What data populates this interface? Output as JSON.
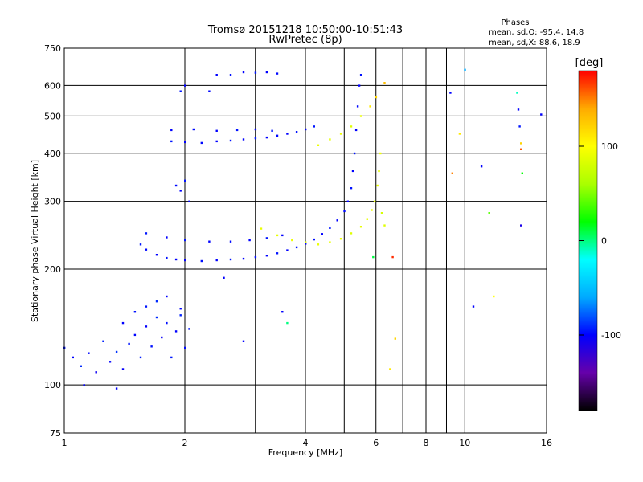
{
  "chart_data": {
    "type": "scatter",
    "title": "Tromsø 20151218 10:50:00-10:51:43",
    "subtitle": "RwPretec (8p)",
    "xlabel": "Frequency [MHz]",
    "ylabel": "Stationary phase Virtual Height [km]",
    "x_scale": "log",
    "y_scale": "log",
    "xlim": [
      1,
      16
    ],
    "ylim": [
      75,
      750
    ],
    "grid": true,
    "x_ticks": [
      1,
      2,
      4,
      6,
      8,
      10,
      16
    ],
    "x_tick_labels": [
      "1",
      "2",
      "4",
      "6",
      "8",
      "10",
      "16"
    ],
    "x_minor_ticks": [
      3,
      5,
      7,
      9
    ],
    "y_ticks": [
      75,
      100,
      200,
      300,
      400,
      500,
      600,
      750
    ],
    "y_tick_labels": [
      "75",
      "100",
      "200",
      "300",
      "400",
      "500",
      "600",
      "750"
    ],
    "stats": {
      "heading": "Phases",
      "line_o": "mean, sd,O: -95.4, 14.8",
      "line_x": "mean, sd,X:  88.6, 18.9"
    },
    "colorbar": {
      "label": "[deg]",
      "range": [
        -180,
        180
      ],
      "ticks": [
        100,
        0,
        -100
      ],
      "tick_labels": [
        "100",
        "0",
        "-100"
      ],
      "colormap": [
        "#000000",
        "#6600aa",
        "#0000ff",
        "#00aaff",
        "#00ffff",
        "#00ff00",
        "#aaff00",
        "#ffff00",
        "#ffaa00",
        "#ff0000"
      ]
    },
    "series": [
      {
        "id": "o_low_band",
        "points": [
          [
            1.0,
            125,
            -95
          ],
          [
            1.05,
            118,
            -100
          ],
          [
            1.1,
            112,
            -90
          ],
          [
            1.15,
            121,
            -98
          ],
          [
            1.2,
            108,
            -105
          ],
          [
            1.25,
            130,
            -92
          ],
          [
            1.3,
            115,
            -100
          ],
          [
            1.35,
            122,
            -88
          ],
          [
            1.4,
            110,
            -102
          ],
          [
            1.45,
            128,
            -95
          ],
          [
            1.5,
            135,
            -99
          ],
          [
            1.55,
            118,
            -93
          ],
          [
            1.6,
            142,
            -101
          ],
          [
            1.65,
            126,
            -96
          ],
          [
            1.7,
            150,
            -90
          ],
          [
            1.75,
            133,
            -104
          ],
          [
            1.8,
            145,
            -97
          ],
          [
            1.85,
            118,
            -94
          ],
          [
            1.9,
            138,
            -100
          ],
          [
            1.95,
            152,
            -92
          ],
          [
            2.0,
            125,
            -98
          ],
          [
            2.05,
            140,
            -95
          ],
          [
            1.12,
            100,
            -100
          ],
          [
            1.35,
            98,
            -100
          ],
          [
            1.6,
            160,
            -95
          ],
          [
            1.7,
            165,
            -90
          ],
          [
            1.8,
            170,
            -100
          ],
          [
            1.95,
            158,
            -100
          ],
          [
            1.5,
            155,
            -96
          ],
          [
            1.4,
            145,
            -100
          ]
        ]
      },
      {
        "id": "o_E_cusp",
        "points": [
          [
            1.55,
            232,
            -95
          ],
          [
            1.6,
            225,
            -98
          ],
          [
            1.7,
            218,
            -100
          ],
          [
            1.8,
            214,
            -96
          ],
          [
            1.9,
            212,
            -100
          ],
          [
            2.0,
            211,
            -102
          ],
          [
            2.2,
            210,
            -97
          ],
          [
            2.4,
            211,
            -100
          ],
          [
            2.6,
            212,
            -95
          ],
          [
            2.8,
            213,
            -100
          ],
          [
            3.0,
            215,
            -98
          ],
          [
            3.2,
            217,
            -100
          ],
          [
            3.4,
            220,
            -96
          ],
          [
            3.6,
            224,
            -100
          ],
          [
            3.8,
            228,
            -95
          ],
          [
            4.0,
            233,
            -100
          ],
          [
            4.2,
            239,
            -97
          ],
          [
            4.4,
            247,
            -100
          ],
          [
            4.6,
            256,
            -95
          ],
          [
            4.8,
            268,
            -100
          ],
          [
            5.0,
            283,
            -98
          ],
          [
            5.1,
            300,
            -100
          ],
          [
            5.2,
            325,
            -96
          ],
          [
            5.25,
            360,
            -100
          ],
          [
            5.3,
            400,
            -95
          ],
          [
            5.35,
            460,
            -100
          ],
          [
            5.4,
            530,
            -98
          ],
          [
            5.45,
            600,
            -100
          ],
          [
            5.5,
            640,
            -96
          ]
        ]
      },
      {
        "id": "o_E_upper",
        "points": [
          [
            1.6,
            248,
            -95
          ],
          [
            1.8,
            242,
            -100
          ],
          [
            2.0,
            238,
            -96
          ],
          [
            2.3,
            236,
            -100
          ],
          [
            2.6,
            236,
            -98
          ],
          [
            2.9,
            238,
            -100
          ],
          [
            3.2,
            241,
            -95
          ],
          [
            3.5,
            245,
            -100
          ]
        ]
      },
      {
        "id": "o_F_trace",
        "points": [
          [
            1.85,
            430,
            -95
          ],
          [
            2.0,
            428,
            -100
          ],
          [
            2.2,
            426,
            -98
          ],
          [
            2.4,
            430,
            -100
          ],
          [
            2.6,
            432,
            -96
          ],
          [
            2.8,
            435,
            -100
          ],
          [
            3.0,
            438,
            -95
          ],
          [
            3.2,
            440,
            -100
          ],
          [
            3.4,
            445,
            -98
          ],
          [
            3.6,
            450,
            -100
          ],
          [
            3.8,
            455,
            -96
          ],
          [
            4.0,
            462,
            -100
          ],
          [
            4.2,
            470,
            -95
          ],
          [
            1.85,
            460,
            -100
          ],
          [
            2.1,
            462,
            -98
          ],
          [
            2.4,
            458,
            -100
          ],
          [
            2.7,
            460,
            -96
          ],
          [
            3.0,
            462,
            -100
          ],
          [
            3.3,
            458,
            -95
          ]
        ]
      },
      {
        "id": "o_F_echoes",
        "points": [
          [
            1.95,
            320,
            -100
          ],
          [
            2.0,
            340,
            -96
          ],
          [
            2.05,
            300,
            -100
          ],
          [
            1.9,
            330,
            -98
          ],
          [
            1.95,
            580,
            -95
          ],
          [
            2.0,
            600,
            -100
          ],
          [
            2.3,
            580,
            -98
          ],
          [
            2.4,
            640,
            -100
          ],
          [
            2.6,
            640,
            -96
          ],
          [
            2.8,
            650,
            -100
          ],
          [
            3.0,
            648,
            -95
          ],
          [
            3.2,
            650,
            -100
          ],
          [
            3.4,
            645,
            -98
          ]
        ]
      },
      {
        "id": "x_E_trace",
        "points": [
          [
            3.1,
            255,
            90
          ],
          [
            3.4,
            245,
            88
          ],
          [
            3.7,
            238,
            92
          ],
          [
            4.0,
            235,
            86
          ],
          [
            4.3,
            232,
            90
          ],
          [
            4.6,
            235,
            88
          ],
          [
            4.9,
            240,
            92
          ],
          [
            5.2,
            248,
            85
          ],
          [
            5.5,
            258,
            90
          ],
          [
            5.7,
            270,
            88
          ],
          [
            5.85,
            285,
            92
          ],
          [
            5.95,
            300,
            86
          ],
          [
            6.05,
            330,
            90
          ],
          [
            6.1,
            360,
            88
          ],
          [
            6.15,
            400,
            92
          ],
          [
            6.2,
            280,
            80
          ],
          [
            6.3,
            260,
            85
          ]
        ]
      },
      {
        "id": "x_F_trace",
        "points": [
          [
            4.3,
            420,
            90
          ],
          [
            4.6,
            435,
            88
          ],
          [
            4.9,
            450,
            92
          ],
          [
            5.2,
            470,
            85
          ],
          [
            5.5,
            500,
            90
          ],
          [
            5.8,
            530,
            110
          ],
          [
            6.0,
            560,
            120
          ],
          [
            6.3,
            610,
            130
          ]
        ]
      },
      {
        "id": "scattered",
        "points": [
          [
            2.5,
            190,
            -100
          ],
          [
            3.5,
            155,
            -100
          ],
          [
            3.6,
            145,
            0
          ],
          [
            2.8,
            130,
            -100
          ],
          [
            6.5,
            110,
            110
          ],
          [
            6.7,
            132,
            120
          ],
          [
            9.2,
            575,
            -100
          ],
          [
            9.7,
            450,
            110
          ],
          [
            9.3,
            355,
            150
          ],
          [
            10.0,
            660,
            -60
          ],
          [
            11.0,
            370,
            -100
          ],
          [
            11.5,
            280,
            40
          ],
          [
            10.5,
            160,
            -100
          ],
          [
            11.8,
            170,
            100
          ],
          [
            13.5,
            575,
            -10
          ],
          [
            13.6,
            520,
            -100
          ],
          [
            13.7,
            470,
            -95
          ],
          [
            13.8,
            425,
            120
          ],
          [
            13.8,
            410,
            160
          ],
          [
            13.9,
            355,
            20
          ],
          [
            13.8,
            260,
            -110
          ],
          [
            15.5,
            505,
            -100
          ],
          [
            6.6,
            215,
            170
          ],
          [
            5.9,
            215,
            10
          ]
        ]
      }
    ]
  }
}
